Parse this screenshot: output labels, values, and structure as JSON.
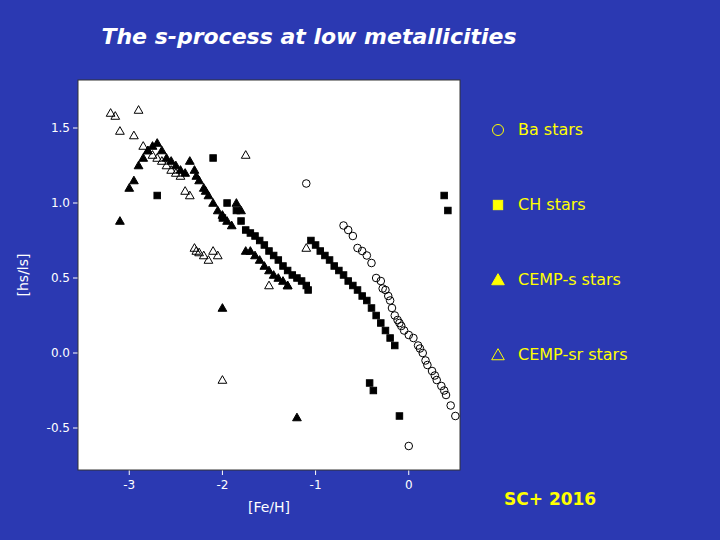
{
  "chart_data": {
    "type": "scatter",
    "title": "The s-process at low metallicities",
    "xlabel": "[Fe/H]",
    "ylabel": "[hs/ls]",
    "xlim": [
      -3.55,
      0.55
    ],
    "ylim": [
      -0.78,
      1.82
    ],
    "xticks": [
      -3,
      -2,
      -1,
      0
    ],
    "yticks": [
      -0.5,
      {
        "value": 0,
        "label": "0.0"
      },
      0.5,
      {
        "value": 1,
        "label": "1.0"
      },
      1.5
    ],
    "legend": "right",
    "annotations": [
      "SC+ 2016"
    ],
    "series": [
      {
        "name": "Ba stars",
        "color": "#000000",
        "marker": "circle-open",
        "x": [
          -1.1,
          -0.7,
          -0.65,
          -0.6,
          -0.55,
          -0.5,
          -0.45,
          -0.4,
          -0.35,
          -0.3,
          -0.28,
          -0.25,
          -0.22,
          -0.2,
          -0.18,
          -0.15,
          -0.12,
          -0.1,
          -0.08,
          -0.05,
          0.0,
          0.05,
          0.1,
          0.12,
          0.15,
          0.18,
          0.2,
          0.25,
          0.28,
          0.3,
          0.35,
          0.38,
          0.4,
          0.45,
          0.5,
          0.0
        ],
        "values": [
          1.13,
          0.85,
          0.82,
          0.78,
          0.7,
          0.68,
          0.65,
          0.6,
          0.5,
          0.48,
          0.43,
          0.42,
          0.38,
          0.35,
          0.3,
          0.25,
          0.22,
          0.2,
          0.18,
          0.15,
          0.12,
          0.1,
          0.05,
          0.03,
          0.0,
          -0.05,
          -0.08,
          -0.12,
          -0.15,
          -0.18,
          -0.22,
          -0.25,
          -0.28,
          -0.35,
          -0.42,
          -0.62
        ]
      },
      {
        "name": "CH stars",
        "color": "#000000",
        "marker": "square",
        "x": [
          -2.7,
          -2.1,
          -2.0,
          -1.95,
          -1.85,
          -1.8,
          -1.75,
          -1.7,
          -1.65,
          -1.6,
          -1.55,
          -1.5,
          -1.45,
          -1.4,
          -1.35,
          -1.3,
          -1.25,
          -1.2,
          -1.15,
          -1.1,
          -1.08,
          -1.05,
          -1.0,
          -0.95,
          -0.9,
          -0.85,
          -0.8,
          -0.75,
          -0.7,
          -0.65,
          -0.6,
          -0.55,
          -0.5,
          -0.45,
          -0.4,
          -0.35,
          -0.3,
          -0.25,
          -0.2,
          -0.15,
          -0.1,
          0.38,
          0.42,
          -0.42,
          -0.38
        ],
        "values": [
          1.05,
          1.3,
          0.9,
          1.0,
          0.95,
          0.88,
          0.82,
          0.8,
          0.78,
          0.75,
          0.72,
          0.68,
          0.65,
          0.62,
          0.58,
          0.55,
          0.52,
          0.5,
          0.48,
          0.45,
          0.42,
          0.75,
          0.72,
          0.68,
          0.65,
          0.62,
          0.58,
          0.55,
          0.52,
          0.48,
          0.45,
          0.42,
          0.38,
          0.35,
          0.3,
          0.25,
          0.2,
          0.15,
          0.1,
          0.05,
          -0.42,
          1.05,
          0.95,
          -0.2,
          -0.25
        ]
      },
      {
        "name": "CEMP-s stars",
        "color": "#000000",
        "marker": "triangle",
        "x": [
          -3.1,
          -3.0,
          -2.95,
          -2.9,
          -2.85,
          -2.8,
          -2.75,
          -2.7,
          -2.65,
          -2.6,
          -2.55,
          -2.5,
          -2.45,
          -2.4,
          -2.35,
          -2.3,
          -2.28,
          -2.25,
          -2.2,
          -2.18,
          -2.15,
          -2.1,
          -2.05,
          -2.0,
          -1.95,
          -1.9,
          -1.85,
          -1.8,
          -1.75,
          -1.7,
          -1.65,
          -1.6,
          -1.55,
          -1.5,
          -1.45,
          -1.4,
          -1.35,
          -1.3,
          -1.2,
          -2.0
        ],
        "values": [
          0.88,
          1.1,
          1.15,
          1.25,
          1.3,
          1.35,
          1.38,
          1.4,
          1.35,
          1.3,
          1.28,
          1.25,
          1.22,
          1.2,
          1.28,
          1.22,
          1.18,
          1.15,
          1.1,
          1.08,
          1.05,
          1.0,
          0.95,
          0.92,
          0.88,
          0.85,
          1.0,
          0.95,
          0.68,
          0.68,
          0.65,
          0.62,
          0.58,
          0.55,
          0.52,
          0.5,
          0.48,
          0.45,
          -0.43,
          0.3
        ]
      },
      {
        "name": "CEMP-sr stars",
        "color": "#000000",
        "marker": "triangle-open",
        "x": [
          -3.2,
          -3.15,
          -3.1,
          -2.95,
          -2.9,
          -2.85,
          -2.8,
          -2.75,
          -2.7,
          -2.65,
          -2.6,
          -2.55,
          -2.5,
          -2.45,
          -2.4,
          -2.35,
          -2.3,
          -2.28,
          -2.25,
          -2.2,
          -2.15,
          -2.1,
          -2.05,
          -2.0,
          -1.75,
          -1.5,
          -1.3,
          -1.1
        ],
        "values": [
          1.6,
          1.58,
          1.48,
          1.45,
          1.62,
          1.38,
          1.35,
          1.32,
          1.3,
          1.28,
          1.25,
          1.22,
          1.2,
          1.18,
          1.08,
          1.05,
          0.7,
          0.68,
          0.67,
          0.65,
          0.62,
          0.68,
          0.65,
          -0.18,
          1.32,
          0.45,
          0.45,
          0.7
        ]
      }
    ]
  }
}
